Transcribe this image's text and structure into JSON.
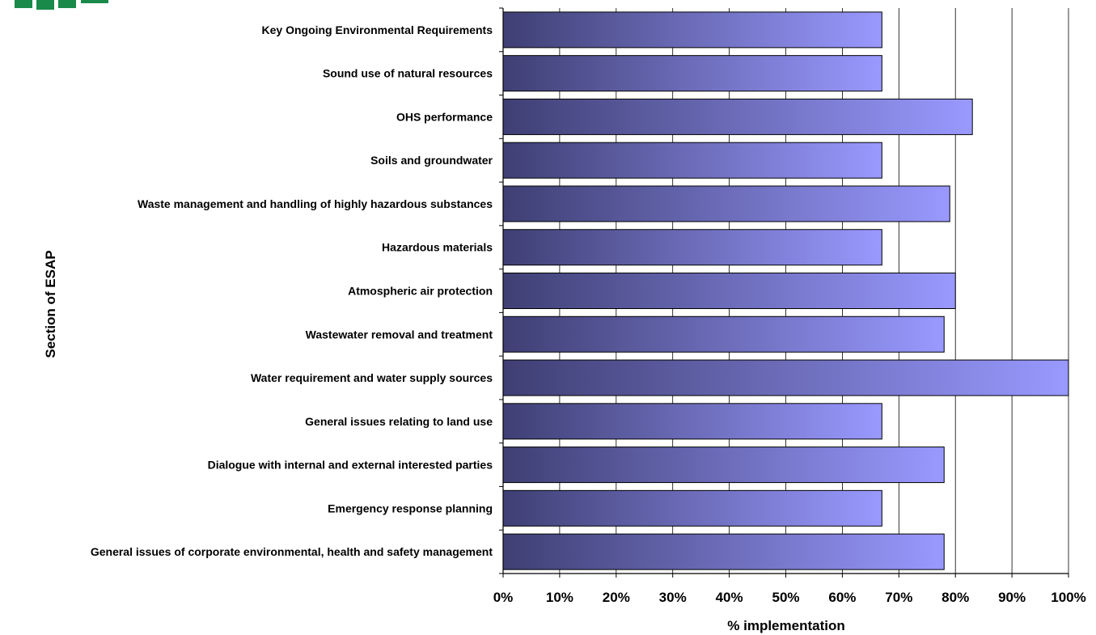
{
  "chart_data": {
    "type": "bar",
    "orientation": "horizontal",
    "xlabel": "% implementation",
    "ylabel": "Section of ESAP",
    "xlim": [
      0,
      100
    ],
    "x_ticks": [
      "0%",
      "10%",
      "20%",
      "30%",
      "40%",
      "50%",
      "60%",
      "70%",
      "80%",
      "90%",
      "100%"
    ],
    "grid": "vertical",
    "categories": [
      "Key Ongoing Environmental Requirements",
      "Sound use of natural resources",
      "OHS performance",
      "Soils and groundwater",
      "Waste management and handling of highly hazardous substances",
      "Hazardous materials",
      "Atmospheric air protection",
      "Wastewater removal and treatment",
      "Water requirement and water supply sources",
      "General issues relating to land use",
      "Dialogue with internal and external interested parties",
      "Emergency response planning",
      "General issues of corporate environmental, health and safety management"
    ],
    "values": [
      67,
      67,
      83,
      67,
      79,
      67,
      80,
      78,
      100,
      67,
      78,
      67,
      78
    ],
    "colors": {
      "bar_start": "#3f3f74",
      "bar_end": "#9999ff",
      "bar_border": "#000000",
      "grid": "#000000"
    }
  },
  "logo": {
    "color": "#1a8a4a"
  }
}
